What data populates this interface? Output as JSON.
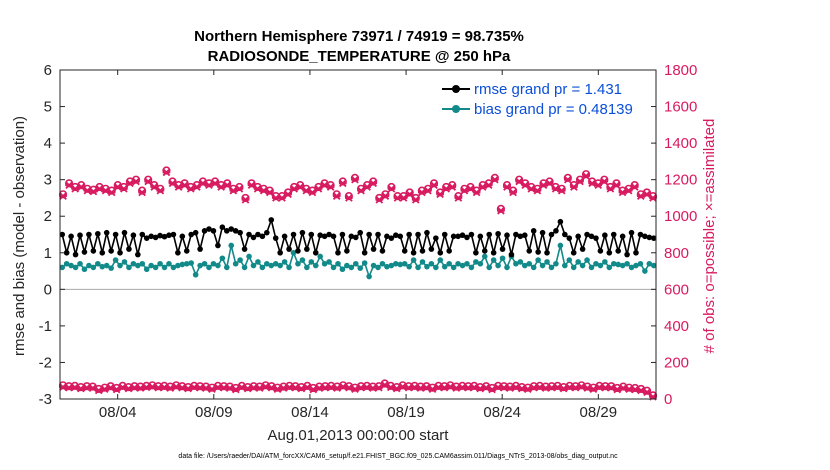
{
  "chart_data": {
    "type": "line",
    "title_line1": "Northern Hemisphere 73971 / 74919 = 98.735%",
    "title_line2": "RADIOSONDE_TEMPERATURE @ 250 hPa",
    "ylabel_left": "rmse and bias (model - observation)",
    "ylabel_right": "# of obs: o=possible; ×=assimilated",
    "xlabel": "Aug.01,2013 00:00:00 start",
    "footnote": "data file: /Users/raeder/DAI/ATM_forcXX/CAM6_setup/f.e21.FHIST_BGC.f09_025.CAM6assim.011/Diags_NTrS_2013-08/obs_diag_output.nc",
    "xlim": [
      1,
      32
    ],
    "ylim_left": [
      -3,
      6
    ],
    "ylim_right": [
      0,
      1800
    ],
    "left_ticks": [
      -3,
      -2,
      -1,
      0,
      1,
      2,
      3,
      4,
      5,
      6
    ],
    "right_ticks": [
      0,
      200,
      400,
      600,
      800,
      1000,
      1200,
      1400,
      1600,
      1800
    ],
    "x_ticks": [
      {
        "value": 4,
        "label": "08/04"
      },
      {
        "value": 9,
        "label": "08/09"
      },
      {
        "value": 14,
        "label": "08/14"
      },
      {
        "value": 19,
        "label": "08/19"
      },
      {
        "value": 24,
        "label": "08/24"
      },
      {
        "value": 29,
        "label": "08/29"
      }
    ],
    "legend_placement": "top-right",
    "grid": false,
    "colors": {
      "rmse": "#000000",
      "bias": "#138a8a",
      "obs": "#d81b60",
      "legend_text": "#0b4fd8",
      "zero_line": "#aaaaaa"
    },
    "series": [
      {
        "name": "rmse grand pr = 1.431",
        "axis": "left",
        "values": [
          1.5,
          1.0,
          1.45,
          0.95,
          1.48,
          1.02,
          1.5,
          1.05,
          1.52,
          1.0,
          1.55,
          1.05,
          1.5,
          1.0,
          1.55,
          1.1,
          1.48,
          0.95,
          1.5,
          1.4,
          1.45,
          1.42,
          1.47,
          1.44,
          1.48,
          1.5,
          1.0,
          1.45,
          1.05,
          1.5,
          1.55,
          1.1,
          1.6,
          1.65,
          1.6,
          1.2,
          1.7,
          1.6,
          1.65,
          1.6,
          1.55,
          1.1,
          1.5,
          1.42,
          1.5,
          1.45,
          1.55,
          1.9,
          1.4,
          1.0,
          1.45,
          1.1,
          1.5,
          1.05,
          1.55,
          1.1,
          1.5,
          1.0,
          1.48,
          1.45,
          1.5,
          1.45,
          1.0,
          1.5,
          1.05,
          1.45,
          1.42,
          1.55,
          1.0,
          1.5,
          1.1,
          1.5,
          1.05,
          1.45,
          1.4,
          1.48,
          1.45,
          1.05,
          1.5,
          1.0,
          1.5,
          1.05,
          1.55,
          1.1,
          1.4,
          1.0,
          1.5,
          1.05,
          1.45,
          1.45,
          1.48,
          1.42,
          1.5,
          1.0,
          1.45,
          1.05,
          1.5,
          1.0,
          1.52,
          1.1,
          1.48,
          0.95,
          1.5,
          1.45,
          1.48,
          1.05,
          1.6,
          1.02,
          1.55,
          1.0,
          1.5,
          1.6,
          1.85,
          1.5,
          1.4,
          1.0,
          1.45,
          1.1,
          1.5,
          1.45,
          1.4,
          1.05,
          1.48,
          1.0,
          1.5,
          1.05,
          1.45,
          0.95,
          1.55,
          1.0,
          1.5,
          1.45,
          1.42,
          1.4
        ]
      },
      {
        "name": "bias grand pr = 0.48139",
        "axis": "left",
        "values": [
          0.6,
          0.7,
          0.65,
          0.6,
          0.7,
          0.55,
          0.65,
          0.6,
          0.7,
          0.62,
          0.65,
          0.58,
          0.8,
          0.65,
          0.75,
          0.6,
          0.7,
          0.65,
          0.7,
          0.55,
          0.65,
          0.6,
          0.7,
          0.6,
          0.7,
          0.6,
          0.65,
          0.68,
          0.7,
          0.72,
          0.4,
          0.65,
          0.7,
          0.6,
          0.7,
          0.65,
          0.85,
          0.6,
          1.2,
          0.7,
          0.8,
          0.6,
          0.9,
          0.65,
          0.75,
          0.6,
          0.7,
          0.65,
          0.7,
          0.65,
          0.75,
          0.6,
          1.0,
          0.7,
          0.8,
          0.6,
          0.75,
          0.65,
          0.9,
          0.7,
          0.75,
          0.6,
          0.7,
          0.55,
          0.65,
          0.6,
          0.7,
          0.58,
          0.72,
          0.35,
          0.65,
          0.6,
          0.7,
          0.62,
          0.65,
          0.7,
          0.68,
          0.7,
          0.62,
          0.8,
          0.6,
          0.75,
          0.62,
          0.7,
          0.6,
          0.8,
          0.62,
          0.7,
          0.6,
          0.7,
          0.65,
          0.7,
          0.6,
          0.75,
          0.7,
          0.9,
          0.6,
          0.8,
          0.65,
          0.85,
          0.6,
          0.9,
          0.7,
          0.75,
          0.65,
          0.7,
          0.6,
          0.8,
          0.65,
          0.75,
          0.6,
          0.7,
          1.2,
          0.65,
          0.8,
          0.6,
          0.75,
          0.65,
          0.8,
          0.6,
          0.7,
          0.65,
          0.75,
          0.6,
          0.7,
          0.68,
          0.65,
          0.7,
          0.6,
          0.65,
          0.7,
          0.5,
          0.7,
          0.65
        ]
      },
      {
        "name": "obs possible (upper)",
        "axis": "right",
        "values": [
          1120,
          1180,
          1160,
          1170,
          1150,
          1145,
          1160,
          1150,
          1140,
          1170,
          1160,
          1190,
          1200,
          1140,
          1200,
          1170,
          1150,
          1250,
          1190,
          1170,
          1180,
          1160,
          1170,
          1190,
          1180,
          1190,
          1170,
          1180,
          1150,
          1160,
          1100,
          1180,
          1160,
          1150,
          1140,
          1110,
          1110,
          1130,
          1160,
          1170,
          1150,
          1140,
          1160,
          1180,
          1170,
          1120,
          1190,
          1110,
          1210,
          1150,
          1170,
          1190,
          1100,
          1120,
          1160,
          1110,
          1110,
          1130,
          1100,
          1140,
          1150,
          1180,
          1130,
          1160,
          1170,
          1110,
          1150,
          1160,
          1140,
          1170,
          1180,
          1210,
          1040,
          1170,
          1140,
          1200,
          1180,
          1160,
          1150,
          1180,
          1190,
          1160,
          1150,
          1210,
          1170,
          1200,
          1230,
          1190,
          1180,
          1200,
          1160,
          1180,
          1140,
          1150,
          1170,
          1120,
          1130,
          1110
        ]
      },
      {
        "name": "obs assimilated (upper)",
        "axis": "right",
        "values": [
          1110,
          1170,
          1150,
          1160,
          1140,
          1135,
          1150,
          1140,
          1130,
          1160,
          1150,
          1180,
          1190,
          1130,
          1190,
          1160,
          1140,
          1240,
          1180,
          1160,
          1170,
          1150,
          1160,
          1180,
          1170,
          1180,
          1160,
          1170,
          1140,
          1150,
          1090,
          1170,
          1150,
          1140,
          1130,
          1100,
          1100,
          1120,
          1150,
          1160,
          1140,
          1130,
          1150,
          1170,
          1160,
          1110,
          1180,
          1100,
          1200,
          1140,
          1160,
          1180,
          1090,
          1110,
          1150,
          1100,
          1100,
          1120,
          1090,
          1130,
          1140,
          1170,
          1120,
          1150,
          1160,
          1100,
          1140,
          1150,
          1130,
          1160,
          1170,
          1200,
          1030,
          1160,
          1130,
          1190,
          1170,
          1150,
          1140,
          1170,
          1180,
          1150,
          1140,
          1200,
          1160,
          1190,
          1220,
          1180,
          1170,
          1190,
          1150,
          1170,
          1130,
          1140,
          1160,
          1110,
          1120,
          1100
        ]
      },
      {
        "name": "obs possible (lower)",
        "axis": "right",
        "values": [
          75,
          70,
          72,
          65,
          70,
          68,
          55,
          62,
          70,
          60,
          72,
          65,
          70,
          68,
          72,
          75,
          70,
          72,
          68,
          75,
          70,
          65,
          72,
          70,
          68,
          62,
          72,
          70,
          68,
          60,
          72,
          65,
          70,
          68,
          75,
          70,
          62,
          68,
          72,
          70,
          65,
          72,
          60,
          68,
          70,
          72,
          68,
          75,
          70,
          62,
          70,
          72,
          68,
          70,
          85,
          72,
          65,
          75,
          70,
          72,
          68,
          70,
          62,
          72,
          70,
          75,
          68,
          72,
          70,
          72,
          65,
          70,
          60,
          72,
          70,
          68,
          72,
          65,
          62,
          70,
          72,
          68,
          70,
          72,
          65,
          72,
          70,
          75,
          68,
          62,
          72,
          70,
          70,
          60,
          68,
          62,
          60,
          55,
          45,
          20
        ]
      },
      {
        "name": "obs assimilated (lower)",
        "axis": "right",
        "values": [
          65,
          62,
          64,
          57,
          62,
          60,
          47,
          54,
          62,
          52,
          64,
          57,
          62,
          60,
          64,
          67,
          62,
          64,
          60,
          67,
          62,
          57,
          64,
          62,
          60,
          54,
          64,
          62,
          60,
          52,
          64,
          57,
          62,
          60,
          67,
          62,
          54,
          60,
          64,
          62,
          57,
          64,
          52,
          60,
          62,
          64,
          60,
          67,
          62,
          54,
          62,
          64,
          60,
          62,
          77,
          64,
          57,
          67,
          62,
          64,
          60,
          62,
          54,
          64,
          62,
          67,
          60,
          64,
          62,
          64,
          57,
          62,
          52,
          64,
          62,
          60,
          64,
          57,
          54,
          62,
          64,
          60,
          62,
          64,
          57,
          64,
          62,
          67,
          60,
          54,
          64,
          62,
          62,
          52,
          60,
          54,
          52,
          47,
          37,
          12
        ]
      }
    ]
  }
}
